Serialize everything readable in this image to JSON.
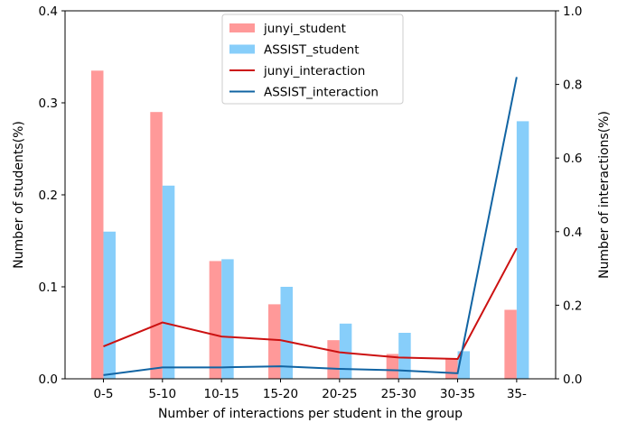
{
  "chart_data": {
    "type": "bar",
    "title": "",
    "xlabel": "Number of interactions per student in the group",
    "ylabel_left": "Number of students(%)",
    "ylabel_right": "Number of interactions(%)",
    "categories": [
      "0-5",
      "5-10",
      "10-15",
      "15-20",
      "20-25",
      "25-30",
      "30-35",
      "35-"
    ],
    "ylim_left": [
      0,
      0.4
    ],
    "ylim_right": [
      0,
      1.0
    ],
    "yticks_left": [
      "0.0",
      "0.1",
      "0.2",
      "0.3",
      "0.4"
    ],
    "yticks_right": [
      "0.0",
      "0.2",
      "0.4",
      "0.6",
      "0.8",
      "1.0"
    ],
    "grid": false,
    "legend_placement": "top-center",
    "bar_series": [
      {
        "name": "junyi_student",
        "color": "#ff9999",
        "values": [
          0.335,
          0.29,
          0.128,
          0.081,
          0.042,
          0.027,
          0.022,
          0.075
        ]
      },
      {
        "name": "ASSIST_student",
        "color": "#87cefa",
        "values": [
          0.16,
          0.21,
          0.13,
          0.1,
          0.06,
          0.05,
          0.03,
          0.28
        ]
      }
    ],
    "line_series": [
      {
        "name": "junyi_interaction",
        "color": "#cc1111",
        "axis": "right",
        "values": [
          0.088,
          0.153,
          0.115,
          0.105,
          0.072,
          0.058,
          0.054,
          0.355
        ]
      },
      {
        "name": "ASSIST_interaction",
        "color": "#1164a3",
        "axis": "right",
        "values": [
          0.01,
          0.031,
          0.031,
          0.034,
          0.027,
          0.023,
          0.015,
          0.82
        ]
      }
    ]
  }
}
